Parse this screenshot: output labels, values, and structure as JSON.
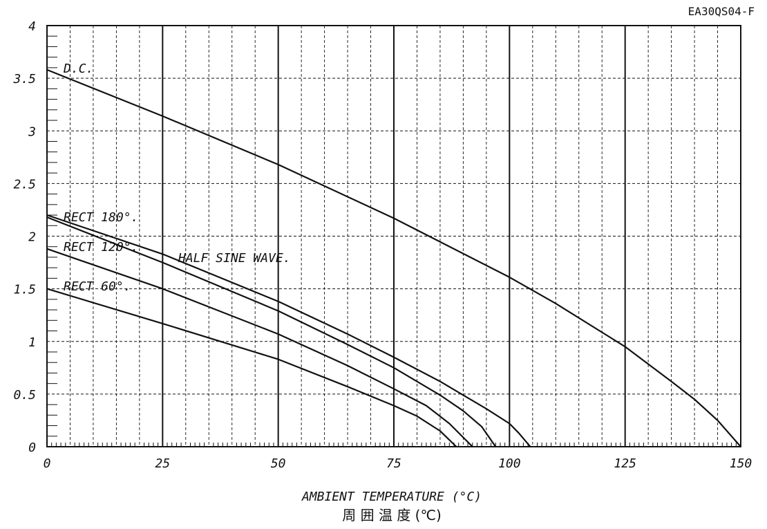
{
  "chart_data": {
    "type": "line",
    "part_code": "EA30QS04-F",
    "xlabel": "AMBIENT TEMPERATURE (°C)",
    "xlabel_jp": "周 囲 温 度 (℃)",
    "ylabel": "",
    "xlim": [
      0,
      150
    ],
    "ylim": [
      0,
      4
    ],
    "x_ticks": [
      "0",
      "25",
      "50",
      "75",
      "100",
      "125",
      "150"
    ],
    "y_ticks": [
      "0",
      "0.5",
      "1",
      "1.5",
      "2",
      "2.5",
      "3",
      "3.5",
      "4"
    ],
    "grid": true,
    "annotations": [
      "HALF SINE WAVE."
    ],
    "series": [
      {
        "name": "D.C.",
        "x": [
          0,
          25,
          50,
          75,
          100,
          110,
          125,
          135,
          140,
          145,
          150
        ],
        "y": [
          3.58,
          3.14,
          2.68,
          2.17,
          1.61,
          1.36,
          0.95,
          0.62,
          0.45,
          0.25,
          0
        ]
      },
      {
        "name": "RECT 180°.",
        "x": [
          0,
          25,
          50,
          65,
          75,
          85,
          90,
          95,
          100,
          102,
          104.5
        ],
        "y": [
          2.2,
          1.83,
          1.38,
          1.07,
          0.85,
          0.62,
          0.49,
          0.36,
          0.22,
          0.13,
          0
        ]
      },
      {
        "name": "RECT 120°.",
        "x": [
          0,
          25,
          50,
          65,
          75,
          85,
          90,
          94,
          97
        ],
        "y": [
          2.18,
          1.75,
          1.29,
          0.97,
          0.75,
          0.49,
          0.34,
          0.19,
          0
        ]
      },
      {
        "name": "",
        "x": [
          0,
          25,
          50,
          65,
          75,
          82,
          87,
          92
        ],
        "y": [
          1.88,
          1.5,
          1.07,
          0.77,
          0.55,
          0.39,
          0.22,
          0
        ]
      },
      {
        "name": "RECT 60°.",
        "x": [
          0,
          25,
          50,
          65,
          75,
          80,
          85,
          88.5
        ],
        "y": [
          1.5,
          1.17,
          0.83,
          0.57,
          0.39,
          0.29,
          0.15,
          0
        ]
      }
    ]
  }
}
